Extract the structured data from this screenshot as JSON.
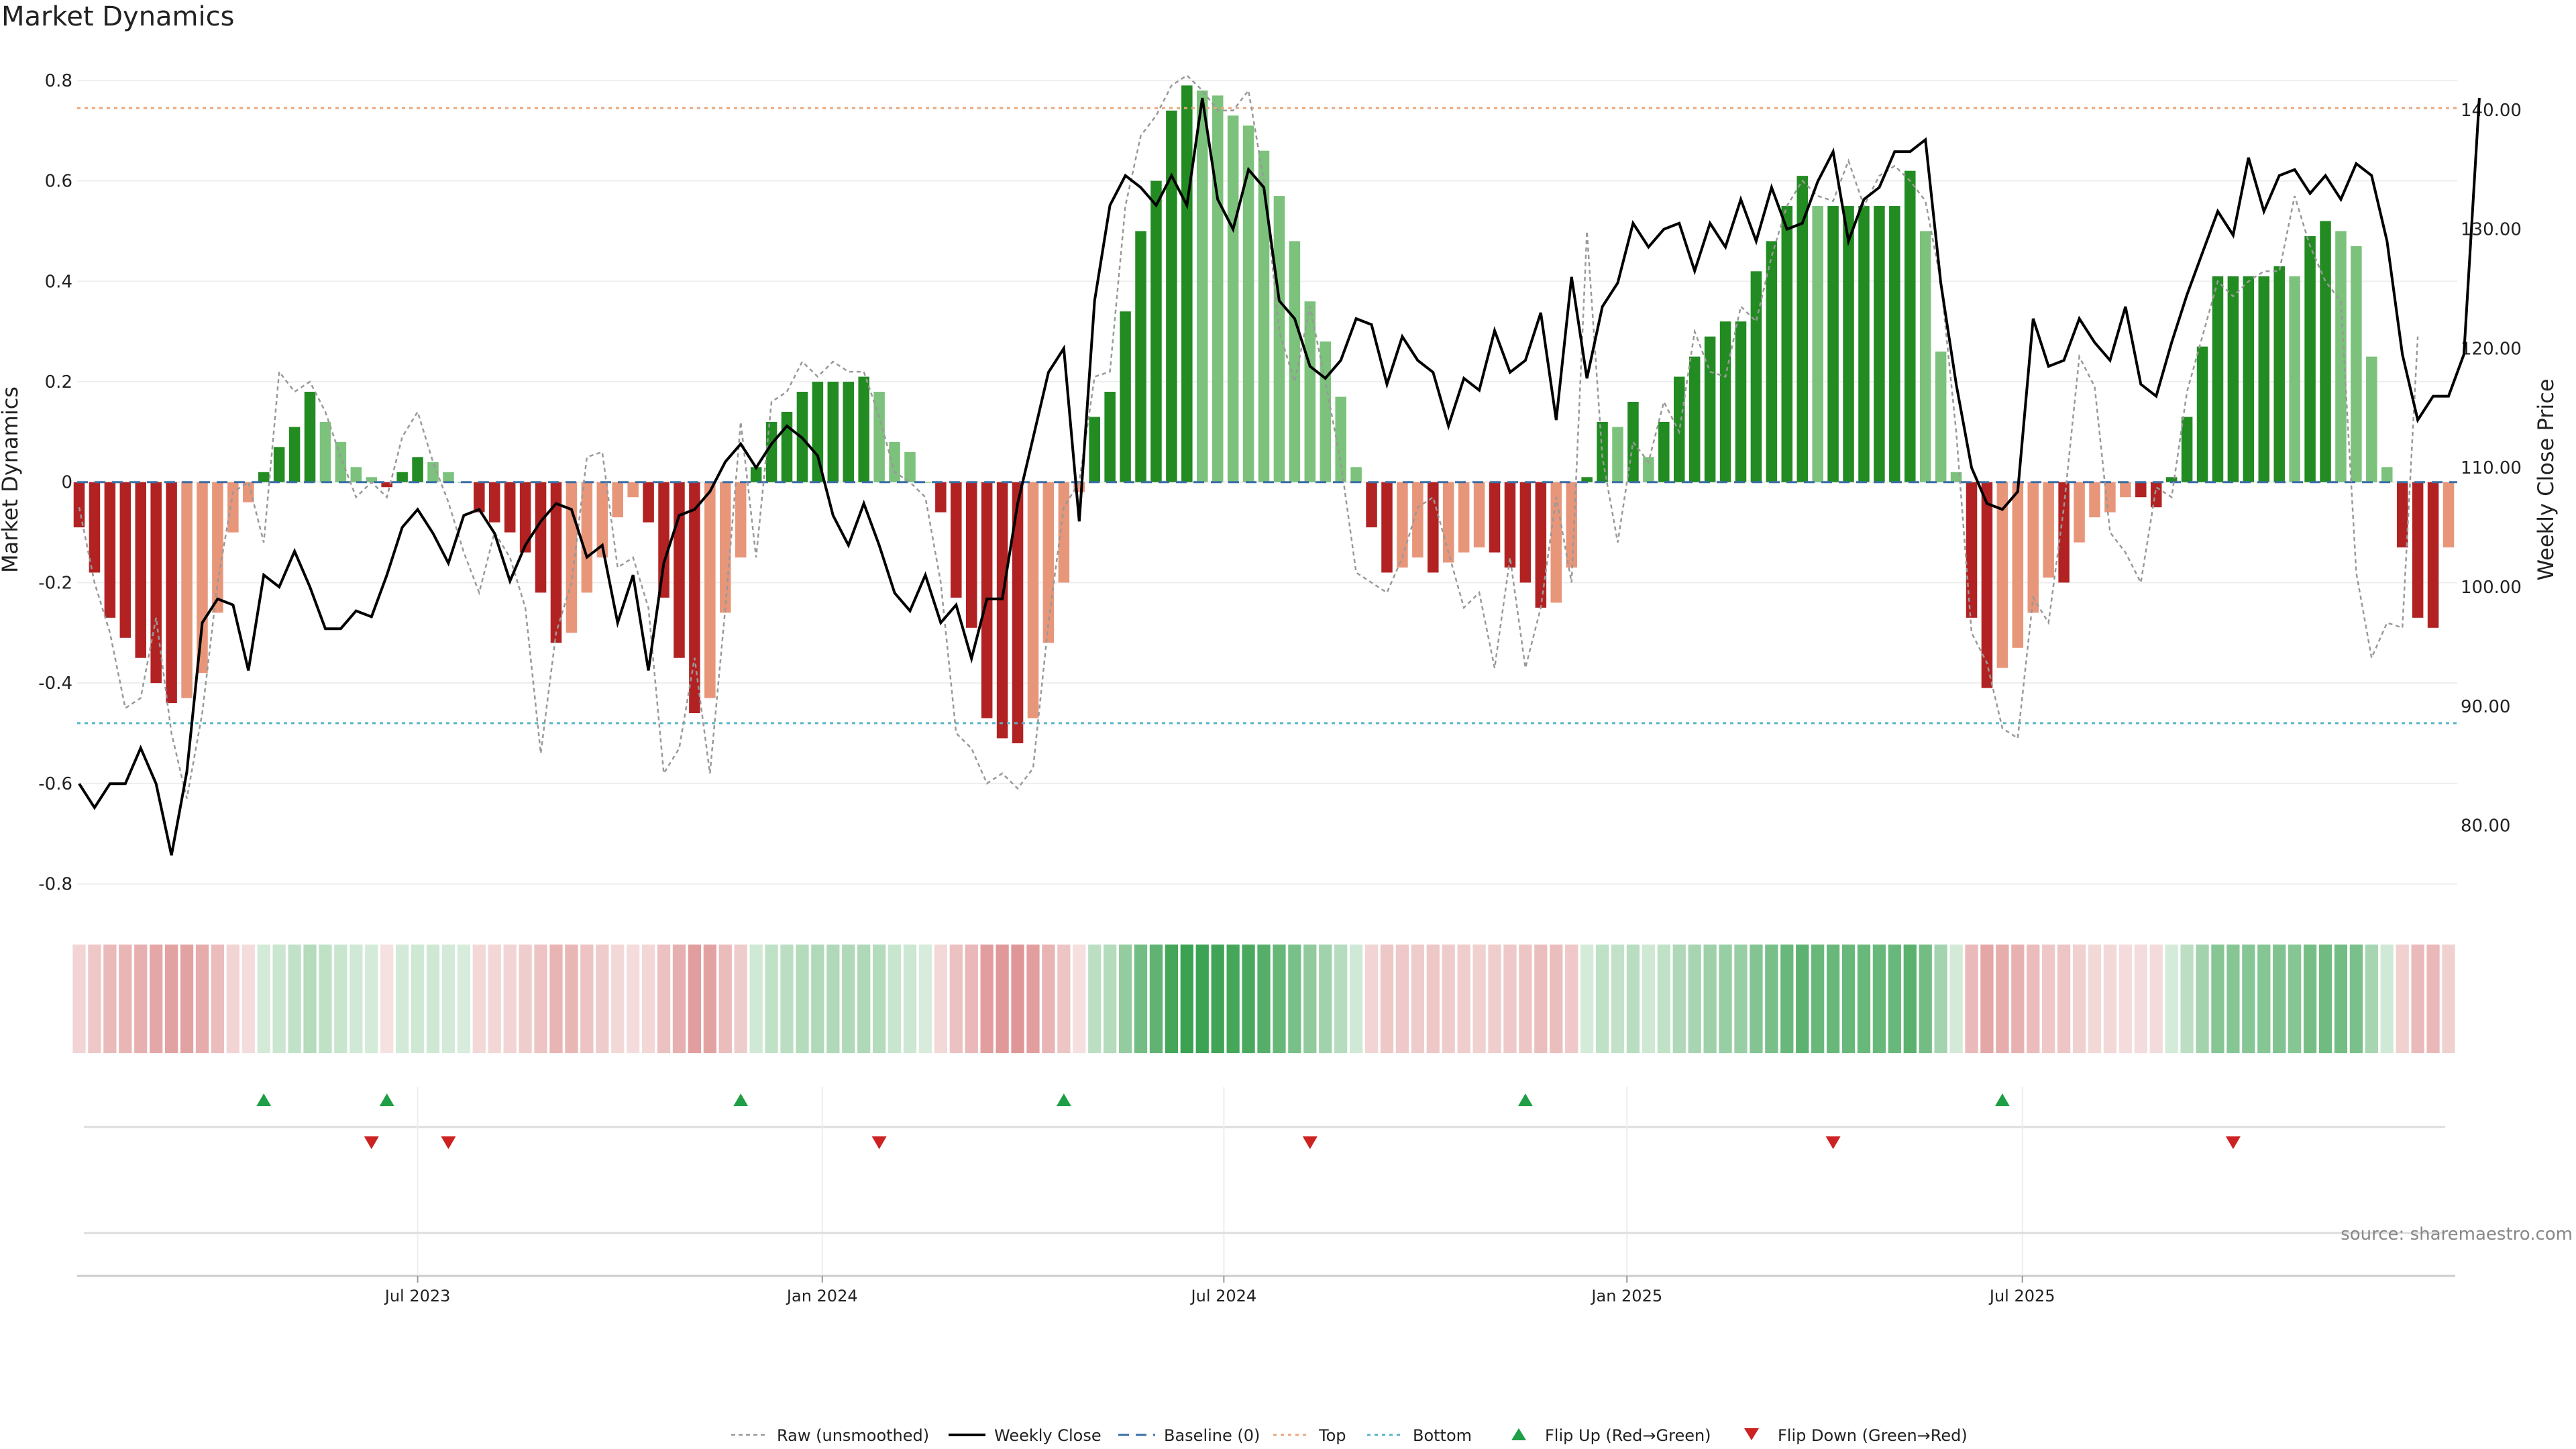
{
  "chart_data": {
    "type": "bar",
    "title": "Market Dynamics",
    "ylabel_left": "Market Dynamics",
    "ylabel_right": "Weekly Close Price",
    "source_note": "source: sharemaestro.com",
    "x_start": "2023-01-30",
    "ylim_left": [
      -0.85,
      0.86
    ],
    "ylim_right": [
      73,
      145
    ],
    "left_ticks": [
      {
        "v": 0.8,
        "label": "0.8"
      },
      {
        "v": 0.6,
        "label": "0.6"
      },
      {
        "v": 0.4,
        "label": "0.4"
      },
      {
        "v": 0.2,
        "label": "0.2"
      },
      {
        "v": 0,
        "label": "0"
      },
      {
        "v": -0.2,
        "label": "-0.2"
      },
      {
        "v": -0.4,
        "label": "-0.4"
      },
      {
        "v": -0.6,
        "label": "-0.6"
      },
      {
        "v": -0.8,
        "label": "-0.8"
      }
    ],
    "right_ticks": [
      {
        "v": 140,
        "label": "140.00"
      },
      {
        "v": 130,
        "label": "130.00"
      },
      {
        "v": 120,
        "label": "120.00"
      },
      {
        "v": 110,
        "label": "110.00"
      },
      {
        "v": 100,
        "label": "100.00"
      },
      {
        "v": 90,
        "label": "90.00"
      },
      {
        "v": 80,
        "label": "80.00"
      }
    ],
    "x_ticks": [
      {
        "week": 22,
        "label": "Jul 2023"
      },
      {
        "week": 48.3,
        "label": "Jan 2024"
      },
      {
        "week": 74.4,
        "label": "Jul 2024"
      },
      {
        "week": 100.6,
        "label": "Jan 2025"
      },
      {
        "week": 126.3,
        "label": "Jul 2025"
      }
    ],
    "top_threshold": 0.745,
    "bottom_threshold": -0.48,
    "smoothed": [
      -0.09,
      -0.18,
      -0.27,
      -0.31,
      -0.35,
      -0.4,
      -0.44,
      -0.43,
      -0.38,
      -0.26,
      -0.1,
      -0.04,
      0.02,
      0.07,
      0.11,
      0.18,
      0.12,
      0.08,
      0.03,
      0.01,
      -0.01,
      0.02,
      0.05,
      0.04,
      0.02,
      0.0,
      -0.06,
      -0.08,
      -0.1,
      -0.14,
      -0.22,
      -0.32,
      -0.3,
      -0.22,
      -0.15,
      -0.07,
      -0.03,
      -0.08,
      -0.23,
      -0.35,
      -0.46,
      -0.43,
      -0.26,
      -0.15,
      0.03,
      0.12,
      0.14,
      0.18,
      0.2,
      0.2,
      0.2,
      0.21,
      0.18,
      0.08,
      0.06,
      0.0,
      -0.06,
      -0.23,
      -0.29,
      -0.47,
      -0.51,
      -0.52,
      -0.47,
      -0.32,
      -0.2,
      -0.02,
      0.13,
      0.18,
      0.34,
      0.5,
      0.6,
      0.74,
      0.79,
      0.78,
      0.77,
      0.73,
      0.71,
      0.66,
      0.57,
      0.48,
      0.36,
      0.28,
      0.17,
      0.03,
      -0.09,
      -0.18,
      -0.17,
      -0.15,
      -0.18,
      -0.16,
      -0.14,
      -0.13,
      -0.14,
      -0.17,
      -0.2,
      -0.25,
      -0.24,
      -0.17,
      0.01,
      0.12,
      0.11,
      0.16,
      0.05,
      0.12,
      0.21,
      0.25,
      0.29,
      0.32,
      0.32,
      0.42,
      0.48,
      0.55,
      0.61,
      0.55,
      0.55,
      0.55,
      0.55,
      0.55,
      0.55,
      0.62,
      0.5,
      0.26,
      0.02,
      -0.27,
      -0.41,
      -0.37,
      -0.33,
      -0.26,
      -0.19,
      -0.2,
      -0.12,
      -0.07,
      -0.06,
      -0.03,
      -0.03,
      -0.05,
      0.01,
      0.13,
      0.27,
      0.41,
      0.41,
      0.41,
      0.41,
      0.43,
      0.41,
      0.49,
      0.52,
      0.5,
      0.47,
      0.25,
      0.03,
      -0.13,
      -0.27,
      -0.29,
      -0.13
    ],
    "raw": [
      -0.05,
      -0.2,
      -0.3,
      -0.45,
      -0.43,
      -0.27,
      -0.5,
      -0.63,
      -0.46,
      -0.2,
      -0.02,
      0.0,
      -0.12,
      0.22,
      0.18,
      0.2,
      0.14,
      0.05,
      -0.03,
      0.0,
      -0.03,
      0.09,
      0.14,
      0.04,
      -0.04,
      -0.14,
      -0.22,
      -0.1,
      -0.15,
      -0.25,
      -0.54,
      -0.3,
      -0.2,
      0.05,
      0.06,
      -0.17,
      -0.15,
      -0.25,
      -0.58,
      -0.53,
      -0.35,
      -0.58,
      -0.25,
      0.12,
      -0.15,
      0.16,
      0.18,
      0.24,
      0.21,
      0.24,
      0.22,
      0.22,
      0.13,
      0.02,
      0.0,
      -0.03,
      -0.2,
      -0.5,
      -0.53,
      -0.6,
      -0.58,
      -0.61,
      -0.57,
      -0.28,
      -0.05,
      -0.0,
      0.21,
      0.22,
      0.55,
      0.69,
      0.73,
      0.79,
      0.81,
      0.78,
      0.74,
      0.74,
      0.78,
      0.6,
      0.3,
      0.2,
      0.35,
      0.2,
      0.04,
      -0.18,
      -0.2,
      -0.22,
      -0.15,
      -0.05,
      -0.03,
      -0.14,
      -0.25,
      -0.22,
      -0.37,
      -0.15,
      -0.37,
      -0.25,
      -0.03,
      -0.2,
      0.5,
      0.05,
      -0.12,
      0.08,
      0.04,
      0.16,
      0.1,
      0.3,
      0.22,
      0.21,
      0.35,
      0.32,
      0.45,
      0.55,
      0.6,
      0.57,
      0.56,
      0.64,
      0.55,
      0.61,
      0.63,
      0.6,
      0.56,
      0.4,
      0.1,
      -0.3,
      -0.36,
      -0.49,
      -0.51,
      -0.23,
      -0.28,
      -0.05,
      0.25,
      0.19,
      -0.1,
      -0.14,
      -0.2,
      -0.01,
      -0.03,
      0.18,
      0.29,
      0.4,
      0.37,
      0.4,
      0.42,
      0.42,
      0.57,
      0.47,
      0.4,
      0.36,
      -0.18,
      -0.35,
      -0.28,
      -0.29,
      0.29
    ],
    "close": [
      83.5,
      81.5,
      83.5,
      83.5,
      86.5,
      83.5,
      77.5,
      84.5,
      97.0,
      99.0,
      98.5,
      93.0,
      101.0,
      100.0,
      103.0,
      100.0,
      96.5,
      96.5,
      98.0,
      97.5,
      101.0,
      105.0,
      106.5,
      104.5,
      102.0,
      106.0,
      106.5,
      104.5,
      100.5,
      103.5,
      105.5,
      107.0,
      106.5,
      102.5,
      103.5,
      97.0,
      101.0,
      93.0,
      102.0,
      106.0,
      106.5,
      108.0,
      110.5,
      112.0,
      110.0,
      112.0,
      113.5,
      112.5,
      111.0,
      106.0,
      103.5,
      107.0,
      103.5,
      99.5,
      98.0,
      101.0,
      97.0,
      98.5,
      94.0,
      99.0,
      99.0,
      107.0,
      112.5,
      118.0,
      120.0,
      105.5,
      124.0,
      132.0,
      134.5,
      133.5,
      132.0,
      134.5,
      132.0,
      141.0,
      132.5,
      130.0,
      135.0,
      133.5,
      124.0,
      122.5,
      118.5,
      117.5,
      119.0,
      122.5,
      122.0,
      117.0,
      121.0,
      119.0,
      118.0,
      113.5,
      117.5,
      116.5,
      121.5,
      118.0,
      119.0,
      123.0,
      114.0,
      126.0,
      117.5,
      123.5,
      125.5,
      130.5,
      128.5,
      130.0,
      130.5,
      126.5,
      130.5,
      128.5,
      132.5,
      129.0,
      133.5,
      130.0,
      130.5,
      134.0,
      136.5,
      129.0,
      132.5,
      133.5,
      136.5,
      136.5,
      137.5,
      125.5,
      117.0,
      110.0,
      107.0,
      106.5,
      108.0,
      122.5,
      118.5,
      119.0,
      122.5,
      120.5,
      119.0,
      123.5,
      117.0,
      116.0,
      120.5,
      124.5,
      128.0,
      131.5,
      129.5,
      136.0,
      131.5,
      134.5,
      135.0,
      133.0,
      134.5,
      132.5,
      135.5,
      134.5,
      129.0,
      119.5,
      114.0,
      116.0,
      116.0,
      119.5,
      141.0
    ],
    "flip_up_weeks": [
      12,
      20,
      43,
      64,
      94,
      125
    ],
    "flip_down_weeks": [
      19,
      24,
      52,
      80,
      114,
      140
    ],
    "legend": [
      "Raw (unsmoothed)",
      "Weekly Close",
      "Baseline (0)",
      "Top",
      "Bottom",
      "Flip Up (Red→Green)",
      "Flip Down (Green→Red)"
    ],
    "colors": {
      "pos_strong": "#228B22",
      "pos_weak": "#7CC27C",
      "neg_strong": "#B22222",
      "neg_weak": "#E8967A",
      "close_line": "#000000",
      "raw_line": "#999999",
      "baseline": "#3a6ea5",
      "top_line": "#E8A87C",
      "bottom_line": "#56B4C8",
      "flip_up": "#1E9E45",
      "flip_down": "#CC2222",
      "grid": "#eeeeee",
      "axis_text": "#222222"
    }
  }
}
